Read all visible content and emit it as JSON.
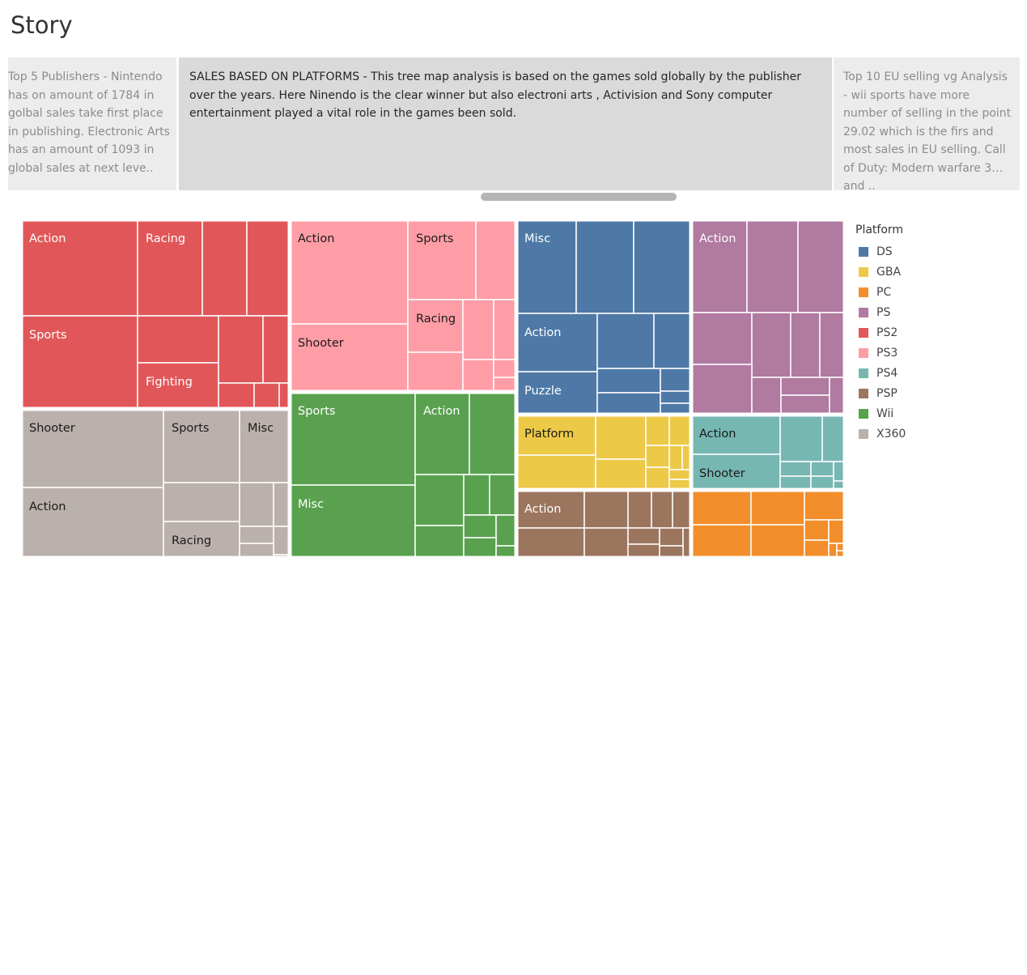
{
  "story": {
    "title": "Story",
    "points": [
      {
        "text": "Top 5 Publishers - Nintendo has on amount of 1784 in golbal sales take first place in publishing. Electronic Arts has an amount of 1093 in global sales at next leve.."
      },
      {
        "text": "SALES BASED ON PLATFORMS - This tree map analysis is based on the games sold globally by the publisher over the years. Here Ninendo is the clear winner but also electroni arts , Activision and Sony computer entertainment played a vital role in the games been sold."
      },
      {
        "text": "Top 10 EU selling vg Analysis - wii sports have more number of selling in the point 29.02 which is the firs and most sales in EU selling. Call of Duty: Modern warfare 3 and .."
      }
    ]
  },
  "legend": {
    "title": "Platform",
    "items": [
      {
        "label": "DS",
        "color": "#4e79a7"
      },
      {
        "label": "GBA",
        "color": "#edc948"
      },
      {
        "label": "PC",
        "color": "#f28e2b"
      },
      {
        "label": "PS",
        "color": "#b07aa1"
      },
      {
        "label": "PS2",
        "color": "#e15759"
      },
      {
        "label": "PS3",
        "color": "#ff9da7"
      },
      {
        "label": "PS4",
        "color": "#76b7b2"
      },
      {
        "label": "PSP",
        "color": "#9c755f"
      },
      {
        "label": "Wii",
        "color": "#59a14f"
      },
      {
        "label": "X360",
        "color": "#bab0ac"
      }
    ]
  },
  "chart_data": {
    "type": "treemap",
    "color_by": "Platform",
    "platforms": [
      {
        "platform": "PS2",
        "genres": [
          "Action",
          "Racing",
          "Sports",
          "Fighting"
        ]
      },
      {
        "platform": "X360",
        "genres": [
          "Shooter",
          "Sports",
          "Misc",
          "Action",
          "Racing"
        ]
      },
      {
        "platform": "PS3",
        "genres": [
          "Action",
          "Sports",
          "Racing",
          "Shooter"
        ]
      },
      {
        "platform": "Wii",
        "genres": [
          "Sports",
          "Action",
          "Misc"
        ]
      },
      {
        "platform": "DS",
        "genres": [
          "Misc",
          "Action",
          "Puzzle"
        ]
      },
      {
        "platform": "GBA",
        "genres": [
          "Platform"
        ]
      },
      {
        "platform": "PSP",
        "genres": [
          "Action"
        ]
      },
      {
        "platform": "PS",
        "genres": [
          "Action"
        ]
      },
      {
        "platform": "PS4",
        "genres": [
          "Action",
          "Shooter"
        ]
      },
      {
        "platform": "PC",
        "genres": []
      }
    ]
  }
}
